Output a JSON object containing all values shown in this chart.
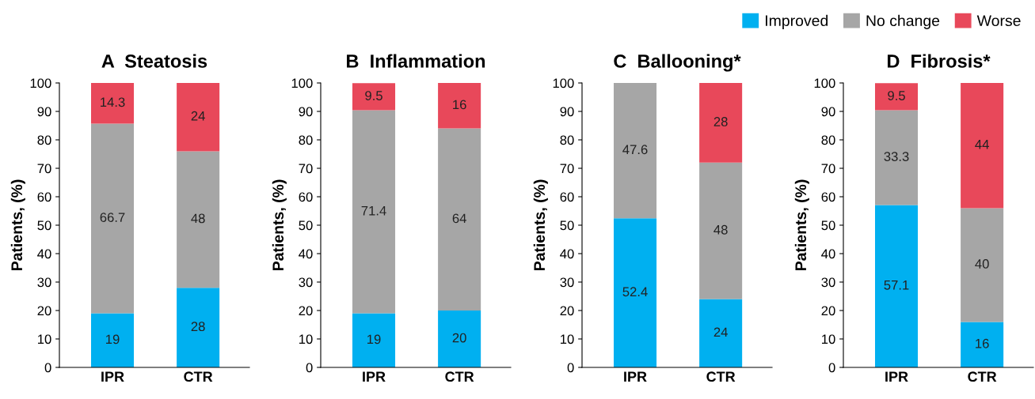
{
  "chart_data": [
    {
      "type": "bar",
      "title": "A  Steatosis",
      "ylabel": "Patients, (%)",
      "categories": [
        "IPR",
        "CTR"
      ],
      "stacked": true,
      "ylim": [
        0,
        100
      ],
      "yticks": [
        0,
        10,
        20,
        30,
        40,
        50,
        60,
        70,
        80,
        90,
        100
      ],
      "grid": false,
      "legend": false,
      "series": [
        {
          "color": "#00b0f0",
          "values": [
            19,
            28
          ],
          "value_labels": [
            "19",
            "28"
          ]
        },
        {
          "color": "#a6a6a6",
          "values": [
            66.7,
            48
          ],
          "value_labels": [
            "66.7",
            "48"
          ]
        },
        {
          "color": "#e8485a",
          "values": [
            14.3,
            24
          ],
          "value_labels": [
            "14.3",
            "24"
          ]
        }
      ]
    },
    {
      "type": "bar",
      "title": "B  Inflammation",
      "ylabel": "Patients, (%)",
      "categories": [
        "IPR",
        "CTR"
      ],
      "stacked": true,
      "ylim": [
        0,
        100
      ],
      "yticks": [
        0,
        10,
        20,
        30,
        40,
        50,
        60,
        70,
        80,
        90,
        100
      ],
      "grid": false,
      "legend": false,
      "series": [
        {
          "color": "#00b0f0",
          "values": [
            19,
            20
          ],
          "value_labels": [
            "19",
            "20"
          ]
        },
        {
          "color": "#a6a6a6",
          "values": [
            71.4,
            64
          ],
          "value_labels": [
            "71.4",
            "64"
          ]
        },
        {
          "color": "#e8485a",
          "values": [
            9.5,
            16
          ],
          "value_labels": [
            "9.5",
            "16"
          ]
        }
      ]
    },
    {
      "type": "bar",
      "title": "C  Ballooning*",
      "ylabel": "Patients, (%)",
      "categories": [
        "IPR",
        "CTR"
      ],
      "stacked": true,
      "ylim": [
        0,
        100
      ],
      "yticks": [
        0,
        10,
        20,
        30,
        40,
        50,
        60,
        70,
        80,
        90,
        100
      ],
      "grid": false,
      "legend": false,
      "series": [
        {
          "color": "#00b0f0",
          "values": [
            52.4,
            24
          ],
          "value_labels": [
            "52.4",
            "24"
          ]
        },
        {
          "color": "#a6a6a6",
          "values": [
            47.6,
            48
          ],
          "value_labels": [
            "47.6",
            "48"
          ]
        },
        {
          "color": "#e8485a",
          "values": [
            0,
            28
          ],
          "value_labels": [
            null,
            "28"
          ]
        }
      ]
    },
    {
      "type": "bar",
      "title": "D  Fibrosis*",
      "ylabel": "Patients, (%)",
      "categories": [
        "IPR",
        "CTR"
      ],
      "stacked": true,
      "ylim": [
        0,
        100
      ],
      "yticks": [
        0,
        10,
        20,
        30,
        40,
        50,
        60,
        70,
        80,
        90,
        100
      ],
      "grid": false,
      "legend": "top",
      "series": [
        {
          "name": "Improved",
          "color": "#00b0f0",
          "values": [
            57.1,
            16
          ],
          "value_labels": [
            "57.1",
            "16"
          ]
        },
        {
          "name": "No change",
          "color": "#a6a6a6",
          "values": [
            33.3,
            40
          ],
          "value_labels": [
            "33.3",
            "40"
          ]
        },
        {
          "name": "Worse",
          "color": "#e8485a",
          "values": [
            9.5,
            44
          ],
          "value_labels": [
            "9.5",
            "44"
          ]
        }
      ]
    }
  ]
}
